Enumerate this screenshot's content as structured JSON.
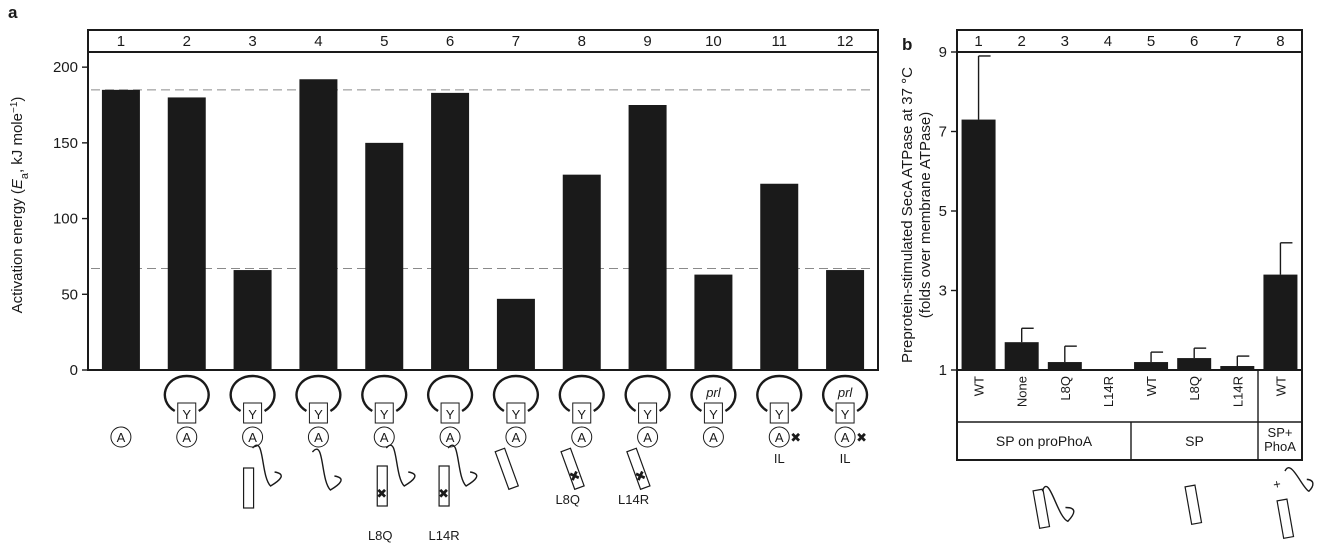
{
  "chart_data": [
    {
      "panel_label": "a",
      "type": "bar",
      "categories": [
        "1",
        "2",
        "3",
        "4",
        "5",
        "6",
        "7",
        "8",
        "9",
        "10",
        "11",
        "12"
      ],
      "values": [
        185,
        180,
        66,
        192,
        150,
        183,
        47,
        129,
        175,
        63,
        123,
        66
      ],
      "ylabel_parts": [
        "Activation energy (",
        "E",
        "a",
        ", kJ mole",
        "−1",
        ")"
      ],
      "ylim": [
        0,
        210
      ],
      "yticks": [
        "0",
        "50",
        "100",
        "150",
        "200"
      ],
      "reference_lines": [
        185,
        67
      ],
      "schematic_labels": {
        "A": "A",
        "Y": "Y",
        "prl": "prl",
        "cross": "✖",
        "IL": "IL",
        "L8Q": "L8Q",
        "L14R": "L14R"
      }
    },
    {
      "panel_label": "b",
      "type": "bar",
      "categories": [
        "1",
        "2",
        "3",
        "4",
        "5",
        "6",
        "7",
        "8"
      ],
      "values": [
        7.3,
        1.7,
        1.2,
        1.0,
        1.2,
        1.3,
        1.1,
        3.4
      ],
      "errors": [
        1.6,
        0.35,
        0.4,
        0.0,
        0.25,
        0.25,
        0.25,
        0.8
      ],
      "ylabel_lines": [
        "Preprotein-stimulated SecA ATPase at 37 °C",
        "(folds over membrane ATPase)"
      ],
      "ylim": [
        1,
        9
      ],
      "yticks": [
        "1",
        "3",
        "5",
        "7",
        "9"
      ],
      "conditions": [
        "WT",
        "None",
        "L8Q",
        "L14R",
        "WT",
        "L8Q",
        "L14R",
        "WT"
      ],
      "groups": [
        "SP on proPhoA",
        "SP",
        "SP+ PhoA"
      ],
      "groups_lines": [
        [
          "SP on proPhoA"
        ],
        [
          "SP"
        ],
        [
          "SP+",
          "PhoA"
        ]
      ],
      "plus_sign": "+"
    }
  ]
}
